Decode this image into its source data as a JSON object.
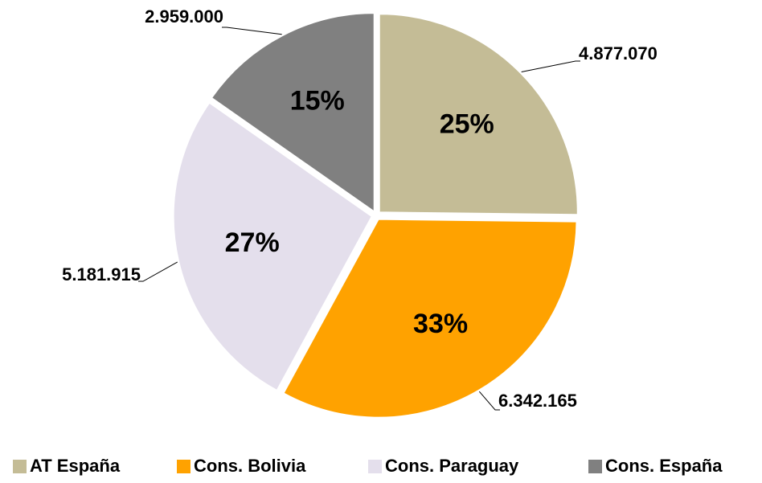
{
  "chart_data": {
    "type": "pie",
    "categories": [
      "AT España",
      "Cons. Bolivia",
      "Cons. Paraguay",
      "Cons. España"
    ],
    "values": [
      4877070,
      6342165,
      5181915,
      2959000
    ],
    "value_labels": [
      "4.877.070",
      "6.342.165",
      "5.181.915",
      "2.959.000"
    ],
    "percent_labels": [
      "25%",
      "33%",
      "27%",
      "15%"
    ],
    "colors": [
      "#c4bc96",
      "#ffa200",
      "#e4dfec",
      "#808080"
    ],
    "legend": "bottom"
  }
}
